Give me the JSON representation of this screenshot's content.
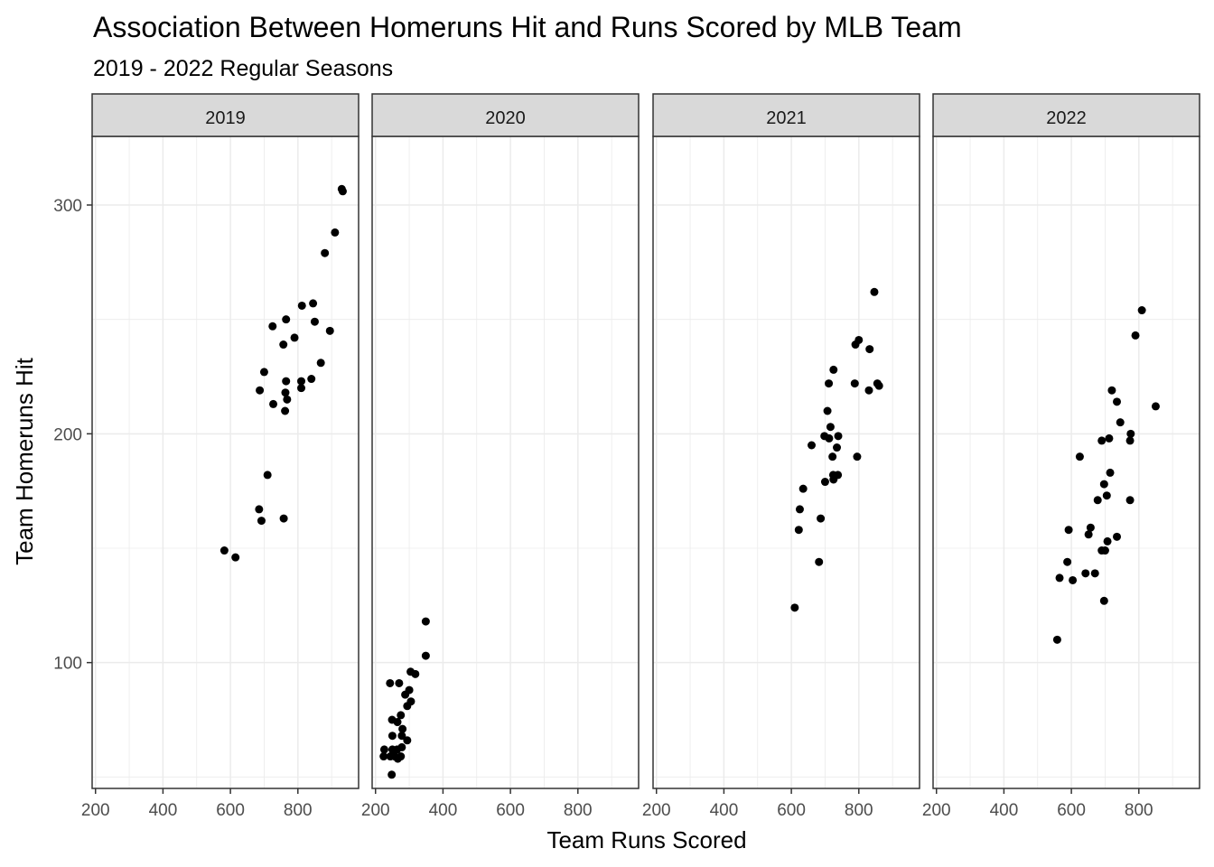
{
  "chart_data": {
    "type": "scatter",
    "title": "Association Between Homeruns Hit and Runs Scored by MLB Team",
    "subtitle": "2019 - 2022 Regular Seasons",
    "xlabel": "Team Runs Scored",
    "ylabel": "Team Homeruns Hit",
    "xlim": [
      190,
      980
    ],
    "ylim": [
      45,
      330
    ],
    "xticks": [
      200,
      400,
      600,
      800
    ],
    "yticks": [
      100,
      200,
      300
    ],
    "grid": true,
    "colors": {
      "point": "#000000",
      "strip_fill": "#d9d9d9",
      "grid": "#ebebeb",
      "panel_border": "#333333"
    },
    "facets": [
      {
        "label": "2019",
        "points": [
          {
            "x": 930,
            "y": 307
          },
          {
            "x": 933,
            "y": 306
          },
          {
            "x": 910,
            "y": 288
          },
          {
            "x": 880,
            "y": 279
          },
          {
            "x": 845,
            "y": 257
          },
          {
            "x": 812,
            "y": 256
          },
          {
            "x": 850,
            "y": 249
          },
          {
            "x": 765,
            "y": 250
          },
          {
            "x": 725,
            "y": 247
          },
          {
            "x": 895,
            "y": 245
          },
          {
            "x": 790,
            "y": 242
          },
          {
            "x": 757,
            "y": 239
          },
          {
            "x": 868,
            "y": 231
          },
          {
            "x": 700,
            "y": 227
          },
          {
            "x": 840,
            "y": 224
          },
          {
            "x": 765,
            "y": 223
          },
          {
            "x": 810,
            "y": 223
          },
          {
            "x": 810,
            "y": 220
          },
          {
            "x": 687,
            "y": 219
          },
          {
            "x": 763,
            "y": 218
          },
          {
            "x": 768,
            "y": 215
          },
          {
            "x": 727,
            "y": 213
          },
          {
            "x": 762,
            "y": 210
          },
          {
            "x": 710,
            "y": 182
          },
          {
            "x": 685,
            "y": 167
          },
          {
            "x": 692,
            "y": 162
          },
          {
            "x": 758,
            "y": 163
          },
          {
            "x": 582,
            "y": 149
          },
          {
            "x": 615,
            "y": 146
          }
        ]
      },
      {
        "label": "2020",
        "points": [
          {
            "x": 349,
            "y": 118
          },
          {
            "x": 349,
            "y": 103
          },
          {
            "x": 304,
            "y": 96
          },
          {
            "x": 318,
            "y": 95
          },
          {
            "x": 243,
            "y": 91
          },
          {
            "x": 270,
            "y": 91
          },
          {
            "x": 300,
            "y": 88
          },
          {
            "x": 288,
            "y": 86
          },
          {
            "x": 305,
            "y": 83
          },
          {
            "x": 294,
            "y": 81
          },
          {
            "x": 275,
            "y": 77
          },
          {
            "x": 249,
            "y": 75
          },
          {
            "x": 265,
            "y": 74
          },
          {
            "x": 280,
            "y": 71
          },
          {
            "x": 278,
            "y": 68
          },
          {
            "x": 250,
            "y": 68
          },
          {
            "x": 294,
            "y": 66
          },
          {
            "x": 278,
            "y": 63
          },
          {
            "x": 264,
            "y": 62
          },
          {
            "x": 250,
            "y": 62
          },
          {
            "x": 226,
            "y": 62
          },
          {
            "x": 244,
            "y": 59
          },
          {
            "x": 257,
            "y": 59
          },
          {
            "x": 224,
            "y": 59
          },
          {
            "x": 275,
            "y": 59
          },
          {
            "x": 266,
            "y": 58
          },
          {
            "x": 248,
            "y": 51
          }
        ]
      },
      {
        "label": "2021",
        "points": [
          {
            "x": 846,
            "y": 262
          },
          {
            "x": 800,
            "y": 241
          },
          {
            "x": 790,
            "y": 239
          },
          {
            "x": 832,
            "y": 237
          },
          {
            "x": 725,
            "y": 228
          },
          {
            "x": 788,
            "y": 222
          },
          {
            "x": 711,
            "y": 222
          },
          {
            "x": 855,
            "y": 222
          },
          {
            "x": 860,
            "y": 221
          },
          {
            "x": 830,
            "y": 219
          },
          {
            "x": 707,
            "y": 210
          },
          {
            "x": 716,
            "y": 203
          },
          {
            "x": 698,
            "y": 199
          },
          {
            "x": 712,
            "y": 198
          },
          {
            "x": 739,
            "y": 199
          },
          {
            "x": 660,
            "y": 195
          },
          {
            "x": 735,
            "y": 194
          },
          {
            "x": 722,
            "y": 190
          },
          {
            "x": 795,
            "y": 190
          },
          {
            "x": 738,
            "y": 182
          },
          {
            "x": 724,
            "y": 182
          },
          {
            "x": 725,
            "y": 180
          },
          {
            "x": 700,
            "y": 179
          },
          {
            "x": 635,
            "y": 176
          },
          {
            "x": 625,
            "y": 167
          },
          {
            "x": 687,
            "y": 163
          },
          {
            "x": 622,
            "y": 158
          },
          {
            "x": 682,
            "y": 144
          },
          {
            "x": 610,
            "y": 124
          }
        ]
      },
      {
        "label": "2022",
        "points": [
          {
            "x": 809,
            "y": 254
          },
          {
            "x": 790,
            "y": 243
          },
          {
            "x": 720,
            "y": 219
          },
          {
            "x": 735,
            "y": 214
          },
          {
            "x": 850,
            "y": 212
          },
          {
            "x": 745,
            "y": 205
          },
          {
            "x": 776,
            "y": 200
          },
          {
            "x": 712,
            "y": 198
          },
          {
            "x": 690,
            "y": 197
          },
          {
            "x": 774,
            "y": 197
          },
          {
            "x": 625,
            "y": 190
          },
          {
            "x": 715,
            "y": 183
          },
          {
            "x": 697,
            "y": 178
          },
          {
            "x": 705,
            "y": 173
          },
          {
            "x": 678,
            "y": 171
          },
          {
            "x": 774,
            "y": 171
          },
          {
            "x": 657,
            "y": 159
          },
          {
            "x": 592,
            "y": 158
          },
          {
            "x": 651,
            "y": 156
          },
          {
            "x": 735,
            "y": 155
          },
          {
            "x": 707,
            "y": 153
          },
          {
            "x": 690,
            "y": 149
          },
          {
            "x": 700,
            "y": 149
          },
          {
            "x": 588,
            "y": 144
          },
          {
            "x": 642,
            "y": 139
          },
          {
            "x": 670,
            "y": 139
          },
          {
            "x": 565,
            "y": 137
          },
          {
            "x": 604,
            "y": 136
          },
          {
            "x": 697,
            "y": 127
          },
          {
            "x": 558,
            "y": 110
          }
        ]
      }
    ]
  }
}
